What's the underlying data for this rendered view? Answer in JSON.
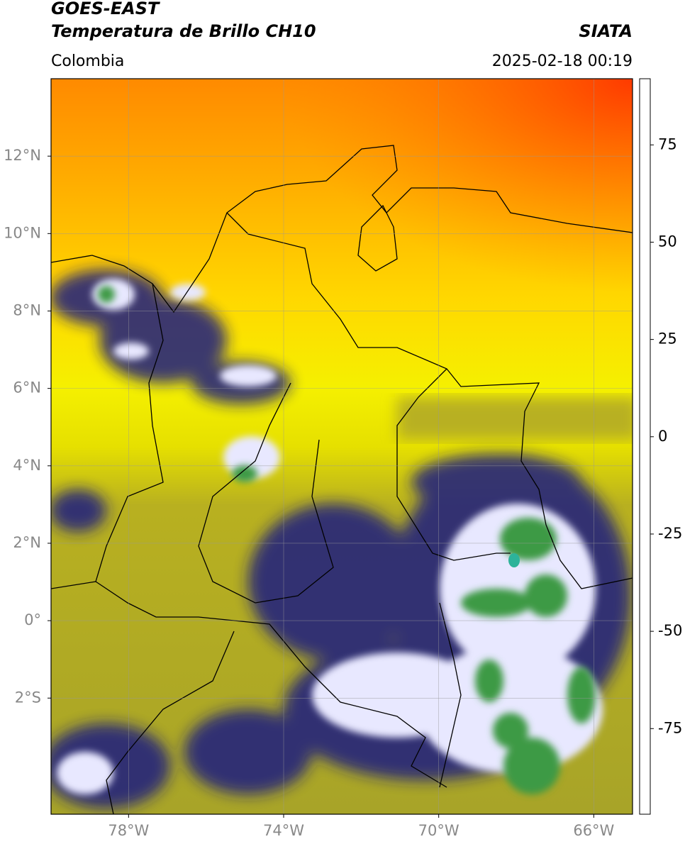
{
  "header": {
    "title": "GOES-EAST",
    "subtitle": "Temperatura de Brillo CH10",
    "source": "SIATA",
    "region": "Colombia",
    "timestamp": "2025-02-18 00:19"
  },
  "map": {
    "xlim": [
      -80,
      -65
    ],
    "ylim": [
      -5,
      14
    ],
    "xticks": [
      {
        "value": -78,
        "label": "78°W"
      },
      {
        "value": -74,
        "label": "74°W"
      },
      {
        "value": -70,
        "label": "70°W"
      },
      {
        "value": -66,
        "label": "66°W"
      }
    ],
    "yticks": [
      {
        "value": 12,
        "label": "12°N"
      },
      {
        "value": 10,
        "label": "10°N"
      },
      {
        "value": 8,
        "label": "8°N"
      },
      {
        "value": 6,
        "label": "6°N"
      },
      {
        "value": 4,
        "label": "4°N"
      },
      {
        "value": 2,
        "label": "2°N"
      },
      {
        "value": 0,
        "label": "0°"
      },
      {
        "value": -2,
        "label": "2°S"
      }
    ],
    "grid": true
  },
  "colorbar": {
    "clim": [
      -97,
      92
    ],
    "ticks": [
      75,
      50,
      25,
      0,
      -25,
      -50,
      -75
    ],
    "stops": [
      {
        "value": -97,
        "color": "#ffffff"
      },
      {
        "value": -93,
        "color": "#ffffff"
      },
      {
        "value": -93,
        "color": "#00e5e5"
      },
      {
        "value": -85,
        "color": "#2db39a"
      },
      {
        "value": -72,
        "color": "#3a9a3a"
      },
      {
        "value": -60,
        "color": "#5aa050"
      },
      {
        "value": -52,
        "color": "#e8f0e8"
      },
      {
        "value": -47,
        "color": "#ffffff"
      },
      {
        "value": -40,
        "color": "#8a8ad0"
      },
      {
        "value": -32,
        "color": "#1a1a90"
      },
      {
        "value": -27,
        "color": "#101060"
      },
      {
        "value": -24,
        "color": "#606040"
      },
      {
        "value": -20,
        "color": "#b8b020"
      },
      {
        "value": -12,
        "color": "#f5f000"
      },
      {
        "value": -2,
        "color": "#ffa000"
      },
      {
        "value": 8,
        "color": "#ff3000"
      },
      {
        "value": 8,
        "color": "#000000"
      },
      {
        "value": 92,
        "color": "#000000"
      }
    ]
  }
}
